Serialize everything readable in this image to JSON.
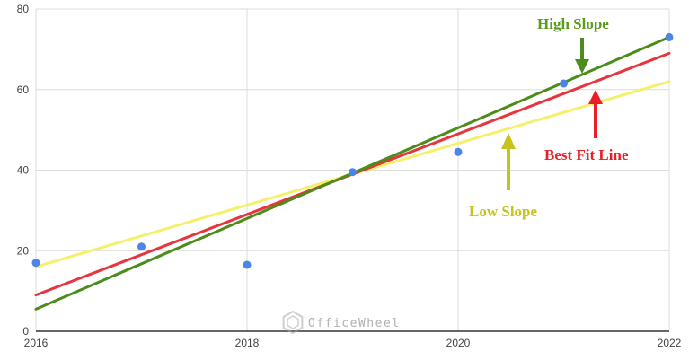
{
  "chart_data": {
    "type": "scatter",
    "title": "",
    "xlabel": "",
    "ylabel": "",
    "xlim": [
      2016,
      2022
    ],
    "ylim": [
      0,
      80
    ],
    "x_ticks": [
      2016,
      2018,
      2020,
      2022
    ],
    "y_ticks": [
      0,
      20,
      40,
      60,
      80
    ],
    "grid": true,
    "points": [
      {
        "x": 2016,
        "y": 17
      },
      {
        "x": 2017,
        "y": 21
      },
      {
        "x": 2018,
        "y": 16.5
      },
      {
        "x": 2019,
        "y": 39.5
      },
      {
        "x": 2020,
        "y": 44.5
      },
      {
        "x": 2021,
        "y": 61.5
      },
      {
        "x": 2022,
        "y": 73
      }
    ],
    "point_color": "#4a86e8",
    "lines": [
      {
        "label": "Low Slope",
        "color": "#f5f06a",
        "x": [
          2016,
          2022
        ],
        "y": [
          16,
          62
        ]
      },
      {
        "label": "Best Fit Line",
        "color": "#e8343c",
        "x": [
          2016,
          2022
        ],
        "y": [
          9,
          69
        ]
      },
      {
        "label": "High Slope",
        "color": "#4c8c1a",
        "x": [
          2016,
          2022
        ],
        "y": [
          5.5,
          73
        ]
      }
    ],
    "annotations": [
      {
        "text": "High Slope",
        "color": "#5a9a1c",
        "arrow_color": "#4c8c1a"
      },
      {
        "text": "Best Fit Line",
        "color": "#ee1c24",
        "arrow_color": "#ee1c24"
      },
      {
        "text": "Low Slope",
        "color": "#c8c21c",
        "arrow_color": "#c8c21c"
      }
    ]
  },
  "watermark": {
    "text": "OfficeWheel",
    "icon": "officewheel-logo-icon"
  }
}
